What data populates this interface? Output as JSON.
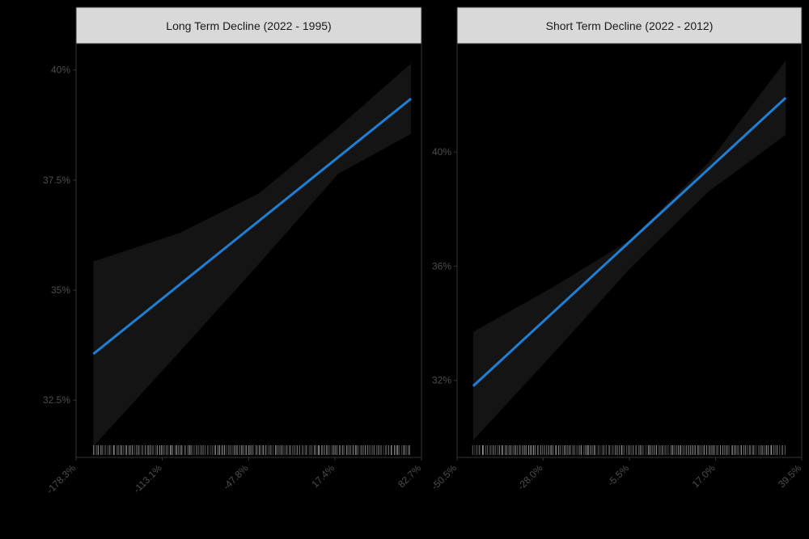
{
  "chart_data": [
    {
      "type": "line",
      "title": "Long Term Decline (2022 - 1995)",
      "xlabel": "",
      "ylabel": "",
      "x_tick_labels": [
        "-178.3%",
        "-113.1%",
        "-47.8%",
        "17.4%",
        "82.7%"
      ],
      "x_ticks": [
        -178.3,
        -113.1,
        -47.8,
        17.4,
        82.7
      ],
      "y_tick_labels": [
        "32.5%",
        "35%",
        "37.5%",
        "40%"
      ],
      "y_ticks": [
        32.5,
        35,
        37.5,
        40
      ],
      "xlim": [
        -178.3,
        82.7
      ],
      "ylim": [
        31.2,
        40.6
      ],
      "series": [
        {
          "x": [
            -165.2,
            74.8
          ],
          "y": [
            33.55,
            39.35
          ],
          "ci_x": [
            -165.2,
            -100,
            -40,
            20,
            74.8
          ],
          "ci_low": [
            31.45,
            33.6,
            35.6,
            37.65,
            38.55
          ],
          "ci_high": [
            35.65,
            36.3,
            37.2,
            38.7,
            40.15
          ]
        }
      ],
      "rug": true,
      "grid": false,
      "colors": {
        "line": "#1f7fd4",
        "ribbon": "#141414",
        "panel": "#000000",
        "strip": "#d9d9d9"
      }
    },
    {
      "type": "line",
      "title": "Short Term Decline (2022 - 2012)",
      "xlabel": "",
      "ylabel": "",
      "x_tick_labels": [
        "-50.5%",
        "-28.0%",
        "-5.5%",
        "17.0%",
        "39.5%"
      ],
      "x_ticks": [
        -50.5,
        -28.0,
        -5.5,
        17.0,
        39.5
      ],
      "y_tick_labels": [
        "32%",
        "36%",
        "40%"
      ],
      "y_ticks": [
        32,
        36,
        40
      ],
      "xlim": [
        -50.5,
        39.5
      ],
      "ylim": [
        29.3,
        43.8
      ],
      "series": [
        {
          "x": [
            -46.3,
            35.3
          ],
          "y": [
            31.8,
            41.9
          ],
          "ci_x": [
            -46.3,
            -25,
            -5.5,
            15,
            35.3
          ],
          "ci_low": [
            29.9,
            33.0,
            35.9,
            38.6,
            40.6
          ],
          "ci_high": [
            33.7,
            35.3,
            36.9,
            39.6,
            43.2
          ]
        }
      ],
      "rug": true,
      "grid": false,
      "colors": {
        "line": "#1f7fd4",
        "ribbon": "#141414",
        "panel": "#000000",
        "strip": "#d9d9d9"
      }
    }
  ]
}
